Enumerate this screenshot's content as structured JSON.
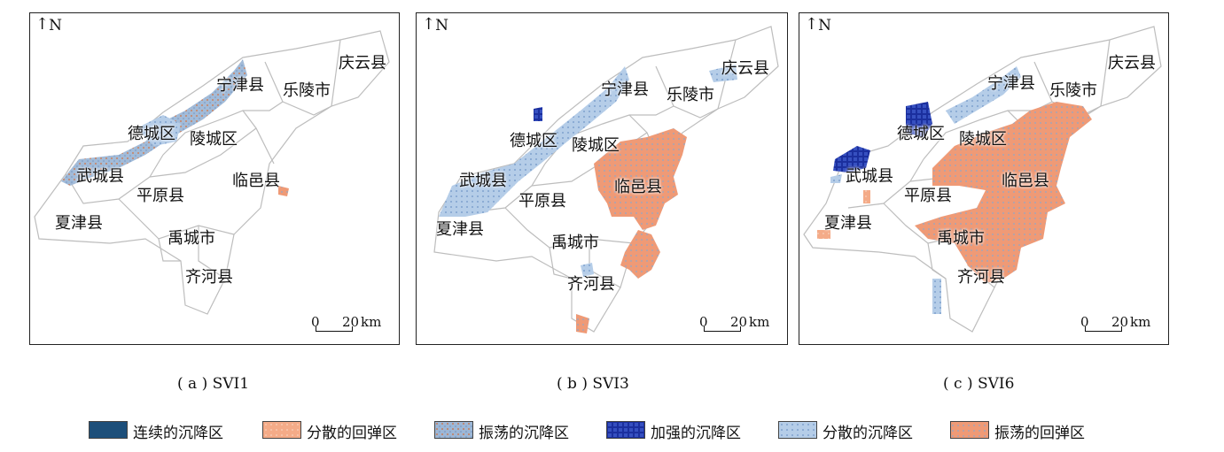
{
  "north_label": "N",
  "scale_bar": {
    "zero": "0",
    "twenty": "20",
    "unit": "km"
  },
  "panels": [
    {
      "id": "a",
      "caption": "( a )  SVI1",
      "counties": {
        "qingyun": "庆云县",
        "ningjin": "宁津县",
        "leling": "乐陵市",
        "decheng": "德城区",
        "lingcheng": "陵城区",
        "wucheng": "武城县",
        "linyi": "临邑县",
        "pingyuan": "平原县",
        "xiajin": "夏津县",
        "yucheng": "禹城市",
        "qihe": "齐河县"
      }
    },
    {
      "id": "b",
      "caption": "( b )  SVI3",
      "counties": {
        "qingyun": "庆云县",
        "ningjin": "宁津县",
        "leling": "乐陵市",
        "decheng": "德城区",
        "lingcheng": "陵城区",
        "wucheng": "武城县",
        "linyi": "临邑县",
        "pingyuan": "平原县",
        "xiajin": "夏津县",
        "yucheng": "禹城市",
        "qihe": "齐河县"
      }
    },
    {
      "id": "c",
      "caption": "( c )  SVI6",
      "counties": {
        "qingyun": "庆云县",
        "ningjin": "宁津县",
        "leling": "乐陵市",
        "decheng": "德城区",
        "lingcheng": "陵城区",
        "wucheng": "武城县",
        "linyi": "临邑县",
        "pingyuan": "平原县",
        "xiajin": "夏津县",
        "yucheng": "禹城市",
        "qihe": "齐河县"
      }
    }
  ],
  "legend": [
    {
      "label": "连续的沉降区",
      "color": "#1d4f7a"
    },
    {
      "label": "分散的回弹区",
      "color": "#f2a17c"
    },
    {
      "label": "振荡的沉降区",
      "color": "#a9bfd8"
    },
    {
      "label": "加强的沉降区",
      "color": "#1a2f9c"
    },
    {
      "label": "分散的沉降区",
      "color": "#aec8e6"
    },
    {
      "label": "振荡的回弹区",
      "color": "#ee9572"
    }
  ]
}
